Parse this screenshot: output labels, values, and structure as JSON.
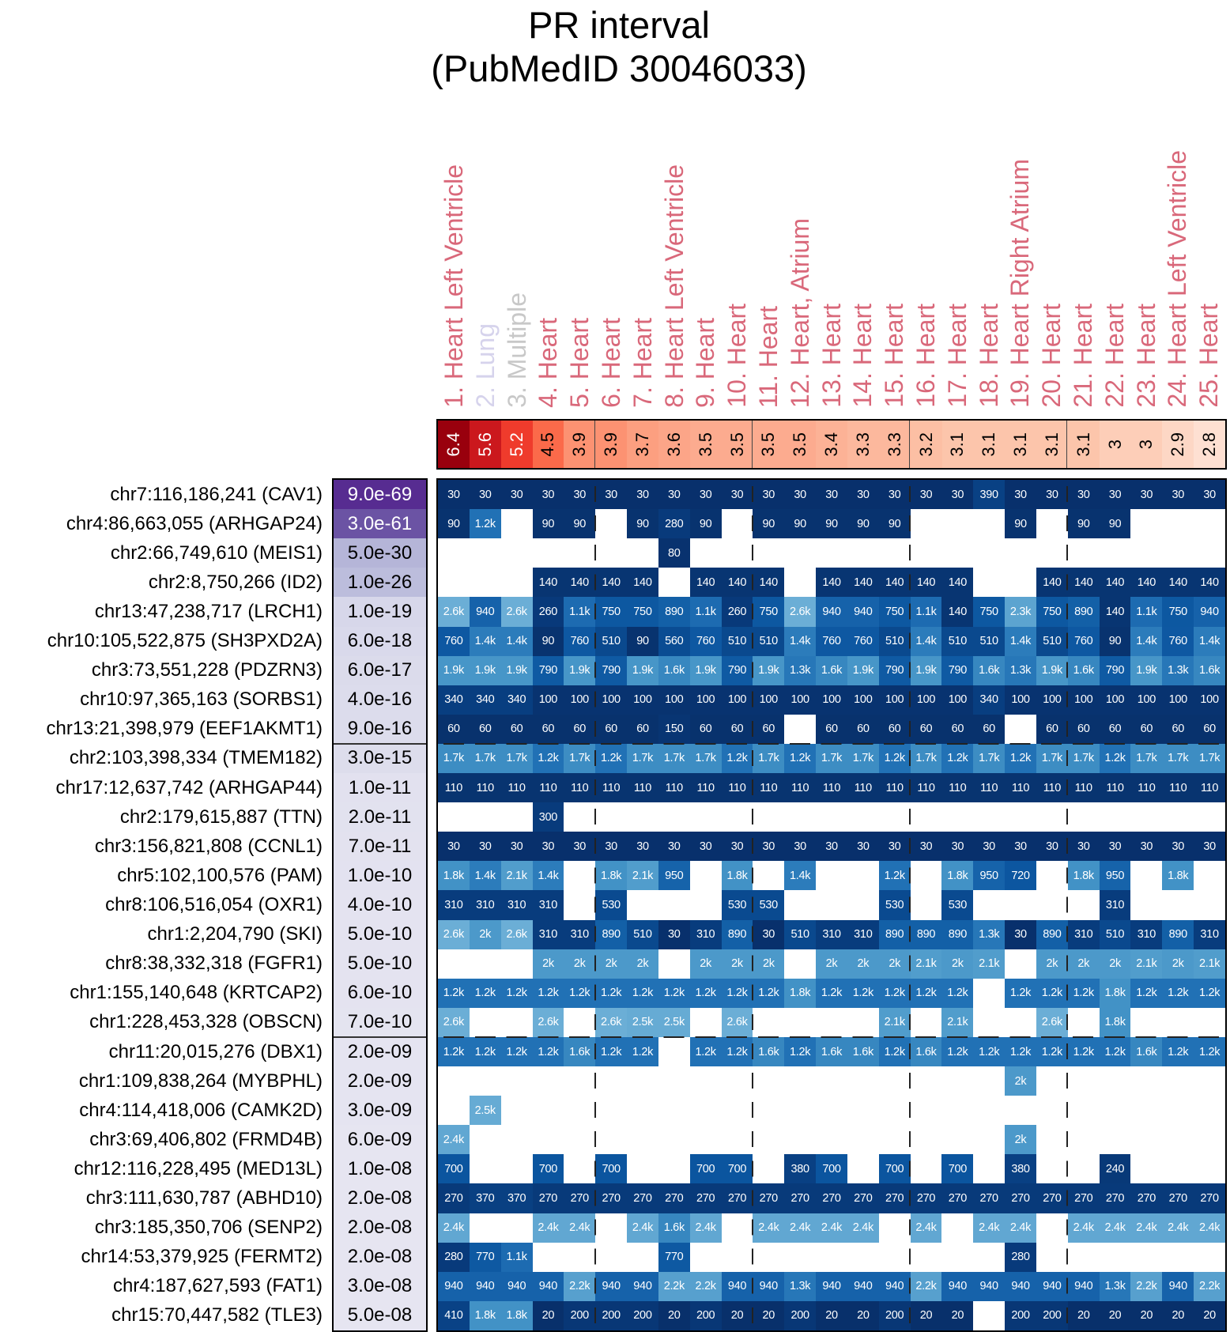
{
  "title": {
    "line1": "PR interval",
    "line2": "(PubMedID 30046033)"
  },
  "colors": {
    "heart": "#d9687a",
    "lung": "#d6d3ec",
    "multiple": "#c8c8c8"
  },
  "columns": [
    {
      "label": "1. Heart Left Ventricle",
      "tissue": "heart"
    },
    {
      "label": "2. Lung",
      "tissue": "lung"
    },
    {
      "label": "3. Multiple",
      "tissue": "multiple"
    },
    {
      "label": "4. Heart",
      "tissue": "heart"
    },
    {
      "label": "5. Heart",
      "tissue": "heart"
    },
    {
      "label": "6. Heart",
      "tissue": "heart"
    },
    {
      "label": "7. Heart",
      "tissue": "heart"
    },
    {
      "label": "8. Heart Left Ventricle",
      "tissue": "heart"
    },
    {
      "label": "9. Heart",
      "tissue": "heart"
    },
    {
      "label": "10. Heart",
      "tissue": "heart"
    },
    {
      "label": "11. Heart",
      "tissue": "heart"
    },
    {
      "label": "12. Heart, Atrium",
      "tissue": "heart"
    },
    {
      "label": "13. Heart",
      "tissue": "heart"
    },
    {
      "label": "14. Heart",
      "tissue": "heart"
    },
    {
      "label": "15. Heart",
      "tissue": "heart"
    },
    {
      "label": "16. Heart",
      "tissue": "heart"
    },
    {
      "label": "17. Heart",
      "tissue": "heart"
    },
    {
      "label": "18. Heart",
      "tissue": "heart"
    },
    {
      "label": "19. Heart Right Atrium",
      "tissue": "heart"
    },
    {
      "label": "20. Heart",
      "tissue": "heart"
    },
    {
      "label": "21. Heart",
      "tissue": "heart"
    },
    {
      "label": "22. Heart",
      "tissue": "heart"
    },
    {
      "label": "23. Heart",
      "tissue": "heart"
    },
    {
      "label": "24. Heart Left Ventricle",
      "tissue": "heart"
    },
    {
      "label": "25. Heart",
      "tissue": "heart"
    }
  ],
  "chart_data": {
    "type": "heatmap",
    "title": "PR interval (PubMedID 30046033)",
    "column_scores": [
      6.4,
      5.6,
      5.2,
      4.5,
      3.9,
      3.9,
      3.7,
      3.6,
      3.5,
      3.5,
      3.5,
      3.5,
      3.4,
      3.3,
      3.3,
      3.2,
      3.1,
      3.1,
      3.1,
      3.1,
      3.1,
      3,
      3,
      2.9,
      2.8
    ],
    "rows": [
      {
        "label": "chr7:116,186,241 (CAV1)",
        "pvalue": "9.0e-69",
        "cells": [
          "30",
          "30",
          "30",
          "30",
          "30",
          "30",
          "30",
          "30",
          "30",
          "30",
          "30",
          "30",
          "30",
          "30",
          "30",
          "30",
          "30",
          "390",
          "30",
          "30",
          "30",
          "30",
          "30",
          "30",
          "30"
        ]
      },
      {
        "label": "chr4:86,663,055 (ARHGAP24)",
        "pvalue": "3.0e-61",
        "cells": [
          "90",
          "1.2k",
          "",
          "90",
          "90",
          "",
          "90",
          "280",
          "90",
          "",
          "90",
          "90",
          "90",
          "90",
          "90",
          "",
          "",
          "",
          "90",
          "",
          "90",
          "90",
          "",
          "",
          ""
        ]
      },
      {
        "label": "chr2:66,749,610 (MEIS1)",
        "pvalue": "5.0e-30",
        "cells": [
          "",
          "",
          "",
          "",
          "",
          "",
          "",
          "80",
          "",
          "",
          "",
          "",
          "",
          "",
          "",
          "",
          "",
          "",
          "",
          "",
          "",
          "",
          "",
          "",
          ""
        ]
      },
      {
        "label": "chr2:8,750,266 (ID2)",
        "pvalue": "1.0e-26",
        "cells": [
          "",
          "",
          "",
          "140",
          "140",
          "140",
          "140",
          "",
          "140",
          "140",
          "140",
          "",
          "140",
          "140",
          "140",
          "140",
          "140",
          "",
          "",
          "140",
          "140",
          "140",
          "140",
          "140",
          "140"
        ]
      },
      {
        "label": "chr13:47,238,717 (LRCH1)",
        "pvalue": "1.0e-19",
        "cells": [
          "2.6k",
          "940",
          "2.6k",
          "260",
          "1.1k",
          "750",
          "750",
          "890",
          "1.1k",
          "260",
          "750",
          "2.6k",
          "940",
          "940",
          "750",
          "1.1k",
          "140",
          "750",
          "2.3k",
          "750",
          "890",
          "140",
          "1.1k",
          "750",
          "940"
        ]
      },
      {
        "label": "chr10:105,522,875 (SH3PXD2A)",
        "pvalue": "6.0e-18",
        "cells": [
          "760",
          "1.4k",
          "1.4k",
          "90",
          "760",
          "510",
          "90",
          "560",
          "760",
          "510",
          "510",
          "1.4k",
          "760",
          "760",
          "510",
          "1.4k",
          "510",
          "510",
          "1.4k",
          "510",
          "760",
          "90",
          "1.4k",
          "760",
          "1.4k"
        ]
      },
      {
        "label": "chr3:73,551,228 (PDZRN3)",
        "pvalue": "6.0e-17",
        "cells": [
          "1.9k",
          "1.9k",
          "1.9k",
          "790",
          "1.9k",
          "790",
          "1.9k",
          "1.6k",
          "1.9k",
          "790",
          "1.9k",
          "1.3k",
          "1.6k",
          "1.9k",
          "790",
          "1.9k",
          "790",
          "1.6k",
          "1.3k",
          "1.9k",
          "1.6k",
          "790",
          "1.9k",
          "1.3k",
          "1.6k"
        ]
      },
      {
        "label": "chr10:97,365,163 (SORBS1)",
        "pvalue": "4.0e-16",
        "cells": [
          "340",
          "340",
          "340",
          "100",
          "100",
          "100",
          "100",
          "100",
          "100",
          "100",
          "100",
          "100",
          "100",
          "100",
          "100",
          "100",
          "100",
          "340",
          "100",
          "100",
          "100",
          "100",
          "100",
          "100",
          "100"
        ]
      },
      {
        "label": "chr13:21,398,979 (EEF1AKMT1)",
        "pvalue": "9.0e-16",
        "cells": [
          "60",
          "60",
          "60",
          "60",
          "60",
          "60",
          "60",
          "150",
          "60",
          "60",
          "60",
          "",
          "60",
          "60",
          "60",
          "60",
          "60",
          "60",
          "",
          "60",
          "60",
          "60",
          "60",
          "60",
          "60"
        ]
      },
      {
        "label": "chr2:103,398,334 (TMEM182)",
        "pvalue": "3.0e-15",
        "cells": [
          "1.7k",
          "1.7k",
          "1.7k",
          "1.2k",
          "1.7k",
          "1.2k",
          "1.7k",
          "1.7k",
          "1.7k",
          "1.2k",
          "1.7k",
          "1.2k",
          "1.7k",
          "1.7k",
          "1.2k",
          "1.7k",
          "1.2k",
          "1.7k",
          "1.2k",
          "1.7k",
          "1.7k",
          "1.2k",
          "1.7k",
          "1.7k",
          "1.7k"
        ]
      },
      {
        "label": "chr17:12,637,742 (ARHGAP44)",
        "pvalue": "1.0e-11",
        "cells": [
          "110",
          "110",
          "110",
          "110",
          "110",
          "110",
          "110",
          "110",
          "110",
          "110",
          "110",
          "110",
          "110",
          "110",
          "110",
          "110",
          "110",
          "110",
          "110",
          "110",
          "110",
          "110",
          "110",
          "110",
          "110"
        ]
      },
      {
        "label": "chr2:179,615,887 (TTN)",
        "pvalue": "2.0e-11",
        "cells": [
          "",
          "",
          "",
          "300",
          "",
          "",
          "",
          "",
          "",
          "",
          "",
          "",
          "",
          "",
          "",
          "",
          "",
          "",
          "",
          "",
          "",
          "",
          "",
          "",
          ""
        ]
      },
      {
        "label": "chr3:156,821,808 (CCNL1)",
        "pvalue": "7.0e-11",
        "cells": [
          "30",
          "30",
          "30",
          "30",
          "30",
          "30",
          "30",
          "30",
          "30",
          "30",
          "30",
          "30",
          "30",
          "30",
          "30",
          "30",
          "30",
          "30",
          "30",
          "30",
          "30",
          "30",
          "30",
          "30",
          "30"
        ]
      },
      {
        "label": "chr5:102,100,576 (PAM)",
        "pvalue": "1.0e-10",
        "cells": [
          "1.8k",
          "1.4k",
          "2.1k",
          "1.4k",
          "",
          "1.8k",
          "2.1k",
          "950",
          "",
          "1.8k",
          "",
          "1.4k",
          "",
          "",
          "1.2k",
          "",
          "1.8k",
          "950",
          "720",
          "",
          "1.8k",
          "950",
          "",
          "1.8k",
          ""
        ]
      },
      {
        "label": "chr8:106,516,054 (OXR1)",
        "pvalue": "4.0e-10",
        "cells": [
          "310",
          "310",
          "310",
          "310",
          "",
          "530",
          "",
          "",
          "",
          "530",
          "530",
          "",
          "",
          "",
          "530",
          "",
          "530",
          "",
          "",
          "",
          "",
          "310",
          "",
          "",
          ""
        ]
      },
      {
        "label": "chr1:2,204,790 (SKI)",
        "pvalue": "5.0e-10",
        "cells": [
          "2.6k",
          "2k",
          "2.6k",
          "310",
          "310",
          "890",
          "510",
          "30",
          "310",
          "890",
          "30",
          "510",
          "310",
          "310",
          "890",
          "890",
          "890",
          "1.3k",
          "30",
          "890",
          "310",
          "510",
          "310",
          "890",
          "310"
        ]
      },
      {
        "label": "chr8:38,332,318 (FGFR1)",
        "pvalue": "5.0e-10",
        "cells": [
          "",
          "",
          "",
          "2k",
          "2k",
          "2k",
          "2k",
          "",
          "2k",
          "2k",
          "2k",
          "",
          "2k",
          "2k",
          "2k",
          "2.1k",
          "2k",
          "2.1k",
          "",
          "2k",
          "2k",
          "2k",
          "2.1k",
          "2k",
          "2.1k"
        ]
      },
      {
        "label": "chr1:155,140,648 (KRTCAP2)",
        "pvalue": "6.0e-10",
        "cells": [
          "1.2k",
          "1.2k",
          "1.2k",
          "1.2k",
          "1.2k",
          "1.2k",
          "1.2k",
          "1.2k",
          "1.2k",
          "1.2k",
          "1.2k",
          "1.8k",
          "1.2k",
          "1.2k",
          "1.2k",
          "1.2k",
          "1.2k",
          "",
          "1.2k",
          "1.2k",
          "1.2k",
          "1.8k",
          "1.2k",
          "1.2k",
          "1.2k"
        ]
      },
      {
        "label": "chr1:228,453,328 (OBSCN)",
        "pvalue": "7.0e-10",
        "cells": [
          "2.6k",
          "",
          "",
          "2.6k",
          "",
          "2.6k",
          "2.5k",
          "2.5k",
          "",
          "2.6k",
          "",
          "",
          "",
          "",
          "2.1k",
          "",
          "2.1k",
          "",
          "",
          "2.6k",
          "",
          "1.8k",
          "",
          "",
          ""
        ]
      },
      {
        "label": "chr11:20,015,276 (DBX1)",
        "pvalue": "2.0e-09",
        "cells": [
          "1.2k",
          "1.2k",
          "1.2k",
          "1.2k",
          "1.6k",
          "1.2k",
          "1.2k",
          "",
          "1.2k",
          "1.2k",
          "1.6k",
          "1.2k",
          "1.6k",
          "1.6k",
          "1.2k",
          "1.6k",
          "1.2k",
          "1.2k",
          "1.2k",
          "1.2k",
          "1.2k",
          "1.2k",
          "1.6k",
          "1.2k",
          "1.2k"
        ]
      },
      {
        "label": "chr1:109,838,264 (MYBPHL)",
        "pvalue": "2.0e-09",
        "cells": [
          "",
          "",
          "",
          "",
          "",
          "",
          "",
          "",
          "",
          "",
          "",
          "",
          "",
          "",
          "",
          "",
          "",
          "",
          "2k",
          "",
          "",
          "",
          "",
          "",
          ""
        ]
      },
      {
        "label": "chr4:114,418,006 (CAMK2D)",
        "pvalue": "3.0e-09",
        "cells": [
          "",
          "2.5k",
          "",
          "",
          "",
          "",
          "",
          "",
          "",
          "",
          "",
          "",
          "",
          "",
          "",
          "",
          "",
          "",
          "",
          "",
          "",
          "",
          "",
          "",
          ""
        ]
      },
      {
        "label": "chr3:69,406,802 (FRMD4B)",
        "pvalue": "6.0e-09",
        "cells": [
          "2.4k",
          "",
          "",
          "",
          "",
          "",
          "",
          "",
          "",
          "",
          "",
          "",
          "",
          "",
          "",
          "",
          "",
          "",
          "2k",
          "",
          "",
          "",
          "",
          "",
          ""
        ]
      },
      {
        "label": "chr12:116,228,495 (MED13L)",
        "pvalue": "1.0e-08",
        "cells": [
          "700",
          "",
          "",
          "700",
          "",
          "700",
          "",
          "",
          "700",
          "700",
          "",
          "380",
          "700",
          "",
          "700",
          "",
          "700",
          "",
          "380",
          "",
          "",
          "240",
          "",
          "",
          ""
        ]
      },
      {
        "label": "chr3:111,630,787 (ABHD10)",
        "pvalue": "2.0e-08",
        "cells": [
          "270",
          "370",
          "370",
          "270",
          "270",
          "270",
          "270",
          "270",
          "270",
          "270",
          "270",
          "270",
          "270",
          "270",
          "270",
          "270",
          "270",
          "270",
          "270",
          "270",
          "270",
          "270",
          "270",
          "270",
          "270"
        ]
      },
      {
        "label": "chr3:185,350,706 (SENP2)",
        "pvalue": "2.0e-08",
        "cells": [
          "2.4k",
          "",
          "",
          "2.4k",
          "2.4k",
          "",
          "2.4k",
          "1.6k",
          "2.4k",
          "",
          "2.4k",
          "2.4k",
          "2.4k",
          "2.4k",
          "",
          "2.4k",
          "",
          "2.4k",
          "2.4k",
          "",
          "2.4k",
          "2.4k",
          "2.4k",
          "2.4k",
          "2.4k"
        ]
      },
      {
        "label": "chr14:53,379,925 (FERMT2)",
        "pvalue": "2.0e-08",
        "cells": [
          "280",
          "770",
          "1.1k",
          "",
          "",
          "",
          "",
          "770",
          "",
          "",
          "",
          "",
          "",
          "",
          "",
          "",
          "",
          "",
          "280",
          "",
          "",
          "",
          "",
          "",
          ""
        ]
      },
      {
        "label": "chr4:187,627,593 (FAT1)",
        "pvalue": "3.0e-08",
        "cells": [
          "940",
          "940",
          "940",
          "940",
          "2.2k",
          "940",
          "940",
          "2.2k",
          "2.2k",
          "940",
          "940",
          "1.3k",
          "940",
          "940",
          "940",
          "2.2k",
          "940",
          "940",
          "940",
          "940",
          "940",
          "1.3k",
          "2.2k",
          "940",
          "2.2k"
        ]
      },
      {
        "label": "chr15:70,447,582 (TLE3)",
        "pvalue": "5.0e-08",
        "cells": [
          "410",
          "1.8k",
          "1.8k",
          "20",
          "200",
          "200",
          "200",
          "20",
          "200",
          "20",
          "20",
          "200",
          "20",
          "20",
          "200",
          "20",
          "20",
          "",
          "200",
          "200",
          "20",
          "20",
          "20",
          "20",
          "20"
        ]
      }
    ]
  }
}
